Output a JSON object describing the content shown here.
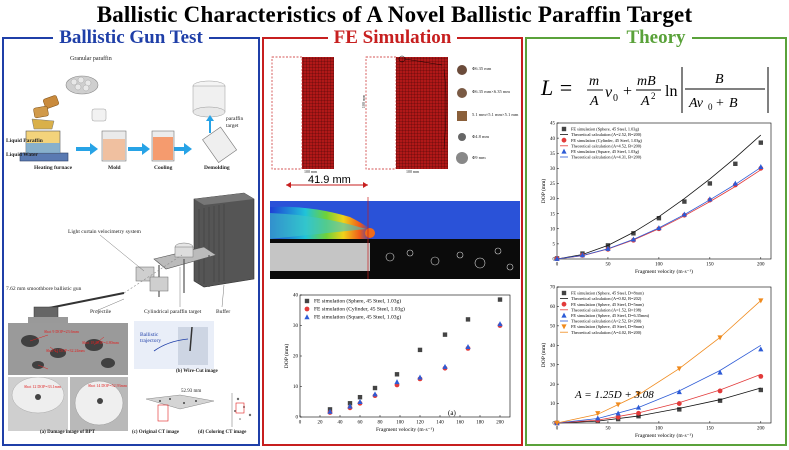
{
  "title": "Ballistic Characteristics of A Novel Ballistic Paraffin Target",
  "panels": {
    "gun": {
      "title": "Ballistic Gun Test",
      "process": {
        "granular": "Granular paraffin",
        "liquid_paraffin": "Liquid Paraffin",
        "liquid_water": "Liquid Water",
        "steps": [
          "Heating furnace",
          "Mold",
          "Cooling",
          "Demolding"
        ],
        "paraffin_target": "paraffin target"
      },
      "setup": {
        "velocimetry": "Light curtain velocimetry system",
        "gun": "7.62 mm smoothbore ballistic gun",
        "projectile": "Projectile",
        "cyl_target": "Cylindrical paraffin target",
        "buffer": "Buffer"
      },
      "bottom": {
        "damage": "(a) Damage image of BPT",
        "wirecut": "(b) Wire-Cut image",
        "ballistic": "Ballistic trajectory",
        "original_ct": "(c) Original CT image",
        "coloring_ct": "(d) Coloring CT image",
        "dim": "52.93 mm",
        "shots": [
          "Shot 9 DOP=23.6mm",
          "Shot 11 DOP=32.24mm",
          "Shot 18 DOP=4.80mm",
          "Shot 12 DOP=33.1mm",
          "Shot 14 DOP=52.93mm"
        ]
      }
    },
    "fe": {
      "title": "FE Simulation",
      "measure": "41.9 mm",
      "model_dims": [
        "100 mm",
        "100 mm",
        "100 mm"
      ],
      "projectiles": [
        "Φ6.35 mm",
        "Φ6.35 mm×6.35 mm",
        "5.1 mm×5.1 mm×5.1 mm",
        "Φ4.8 mm",
        "Φ9 mm"
      ],
      "panel_label": "(a)"
    },
    "theory": {
      "title": "Theory",
      "formula_lhs": "L =",
      "formula_text": "L = m/A v0 + mB/A² ln|B/(Av0+B)|",
      "fit_eq": "A = 1.25D + 3.08"
    }
  },
  "chart_data": [
    {
      "id": "fe-dop",
      "type": "scatter",
      "xlabel": "Fragment velocity (m·s⁻¹)",
      "ylabel": "DOP (mm)",
      "xlim": [
        0,
        210
      ],
      "ylim": [
        0,
        40
      ],
      "xticks": [
        0,
        20,
        40,
        60,
        80,
        100,
        120,
        140,
        160,
        180,
        200
      ],
      "yticks": [
        0,
        10,
        20,
        30,
        40
      ],
      "legend": "top-left",
      "series": [
        {
          "name": "FE simulation (Sphere, 45 Steel, 1.03g)",
          "marker": "square",
          "color": "#444444",
          "x": [
            30,
            50,
            60,
            75,
            97,
            120,
            145,
            168,
            200
          ],
          "y": [
            2.5,
            4.5,
            6.5,
            9.5,
            14,
            22,
            27,
            32,
            38.5
          ]
        },
        {
          "name": "FE simulation (Cylinder, 45 Steel, 1.03g)",
          "marker": "circle",
          "color": "#e23a3a",
          "x": [
            30,
            50,
            60,
            75,
            97,
            120,
            145,
            168,
            200
          ],
          "y": [
            1.5,
            3,
            4.5,
            7,
            10.5,
            12.5,
            16,
            22.5,
            30
          ]
        },
        {
          "name": "FE simulation (Square, 45 Steel, 1.03g)",
          "marker": "triangle",
          "color": "#2d5bd6",
          "x": [
            30,
            50,
            60,
            75,
            97,
            120,
            145,
            168,
            200
          ],
          "y": [
            1.8,
            3.5,
            5,
            7.5,
            11.5,
            13,
            16.5,
            23,
            30.5
          ]
        }
      ]
    },
    {
      "id": "theory-top",
      "type": "line",
      "xlabel": "Fragment velocity (m·s⁻¹)",
      "ylabel": "DOP (mm)",
      "xlim": [
        0,
        210
      ],
      "ylim": [
        0,
        45
      ],
      "xticks": [
        0,
        50,
        100,
        150,
        200
      ],
      "yticks": [
        0,
        5,
        10,
        15,
        20,
        25,
        30,
        35,
        40,
        45
      ],
      "legend": "top-left",
      "series": [
        {
          "name": "FE simulation (Sphere, 45 Steel, 1.03g)",
          "marker": "square",
          "color": "#444444",
          "x": [
            0,
            25,
            50,
            75,
            100,
            125,
            150,
            175,
            200
          ],
          "y": [
            0.2,
            1.8,
            4.5,
            8.5,
            13.5,
            19,
            25,
            31.5,
            38.5
          ]
        },
        {
          "name": "Theoretical calculation (A=2.52, B=200)",
          "marker": "line",
          "color": "#111111",
          "x": [
            0,
            25,
            50,
            75,
            100,
            125,
            150,
            175,
            200
          ],
          "y": [
            0,
            1.5,
            4.5,
            8.8,
            14,
            20,
            26.5,
            33.5,
            41
          ]
        },
        {
          "name": "FE simulation (Cylinder, 45 Steel, 1.03g)",
          "marker": "circle",
          "color": "#e23a3a",
          "x": [
            0,
            25,
            50,
            75,
            100,
            125,
            150,
            175,
            200
          ],
          "y": [
            0.1,
            1.2,
            3.2,
            6.2,
            10,
            14.5,
            19.5,
            24.5,
            30
          ]
        },
        {
          "name": "Theoretical calculation (A=4.52, B=200)",
          "marker": "line",
          "color": "#e23a3a",
          "x": [
            0,
            25,
            50,
            75,
            100,
            125,
            150,
            175,
            200
          ],
          "y": [
            0,
            1.1,
            3.3,
            6.3,
            10,
            14.3,
            19,
            24,
            29.5
          ]
        },
        {
          "name": "FE simulation (Square, 45 Steel, 1.03g)",
          "marker": "triangle",
          "color": "#2d5bd6",
          "x": [
            0,
            25,
            50,
            75,
            100,
            125,
            150,
            175,
            200
          ],
          "y": [
            0.1,
            1.3,
            3.4,
            6.5,
            10.3,
            14.8,
            19.8,
            25,
            30.5
          ]
        },
        {
          "name": "Theoretical calculation (A=4.31, B=200)",
          "marker": "line",
          "color": "#2d5bd6",
          "x": [
            0,
            25,
            50,
            75,
            100,
            125,
            150,
            175,
            200
          ],
          "y": [
            0,
            1.15,
            3.4,
            6.5,
            10.3,
            14.7,
            19.6,
            24.7,
            30.3
          ]
        }
      ]
    },
    {
      "id": "theory-bottom",
      "type": "line",
      "xlabel": "Fragment velocity (m·s⁻¹)",
      "ylabel": "DOP (mm)",
      "xlim": [
        0,
        210
      ],
      "ylim": [
        0,
        70
      ],
      "xticks": [
        0,
        50,
        100,
        150,
        200
      ],
      "yticks": [
        0,
        10,
        20,
        30,
        40,
        50,
        60,
        70
      ],
      "legend": "top-left",
      "series": [
        {
          "name": "FE simulation (Sphere, 45 Steel, D=8mm)",
          "marker": "square",
          "color": "#444444",
          "x": [
            0,
            40,
            60,
            80,
            120,
            160,
            200
          ],
          "y": [
            0,
            1,
            2,
            3.5,
            7,
            11.5,
            17
          ]
        },
        {
          "name": "Theoretical calculation (A=0.82, B=202)",
          "marker": "line",
          "color": "#111111",
          "x": [
            0,
            40,
            80,
            120,
            160,
            200
          ],
          "y": [
            0,
            1,
            3.6,
            7.5,
            12,
            18
          ]
        },
        {
          "name": "FE simulation (Sphere, 45 Steel, D=5mm)",
          "marker": "circle",
          "color": "#e23a3a",
          "x": [
            0,
            40,
            60,
            80,
            120,
            160,
            200
          ],
          "y": [
            0,
            1.5,
            3,
            5,
            10,
            16.5,
            24
          ]
        },
        {
          "name": "Theoretical calculation (A=1.52, B=198)",
          "marker": "line",
          "color": "#e23a3a",
          "x": [
            0,
            40,
            80,
            120,
            160,
            200
          ],
          "y": [
            0,
            1.5,
            5.2,
            10.5,
            17,
            25
          ]
        },
        {
          "name": "FE simulation (Sphere, 45 Steel, D=6.35mm)",
          "marker": "triangle",
          "color": "#2d5bd6",
          "x": [
            0,
            40,
            60,
            80,
            120,
            160,
            200
          ],
          "y": [
            0,
            2.5,
            5,
            8,
            16,
            26,
            38
          ]
        },
        {
          "name": "Theoretical calculation (A=2.52, B=200)",
          "marker": "line",
          "color": "#2d5bd6",
          "x": [
            0,
            40,
            80,
            120,
            160,
            200
          ],
          "y": [
            0,
            2.3,
            8,
            16.5,
            27,
            40
          ]
        },
        {
          "name": "FE simulation (Sphere, 45 Steel, D=8mm)",
          "marker": "triangle-down",
          "color": "#f08a1c",
          "x": [
            0,
            40,
            60,
            80,
            120,
            160,
            200
          ],
          "y": [
            0,
            5,
            9.5,
            15,
            28,
            44,
            63
          ]
        },
        {
          "name": "Theoretical calculation (A=4.02, B=200)",
          "marker": "line",
          "color": "#f08a1c",
          "x": [
            0,
            40,
            80,
            120,
            160,
            200
          ],
          "y": [
            0,
            4.5,
            14.5,
            28,
            44,
            63
          ]
        }
      ]
    }
  ]
}
